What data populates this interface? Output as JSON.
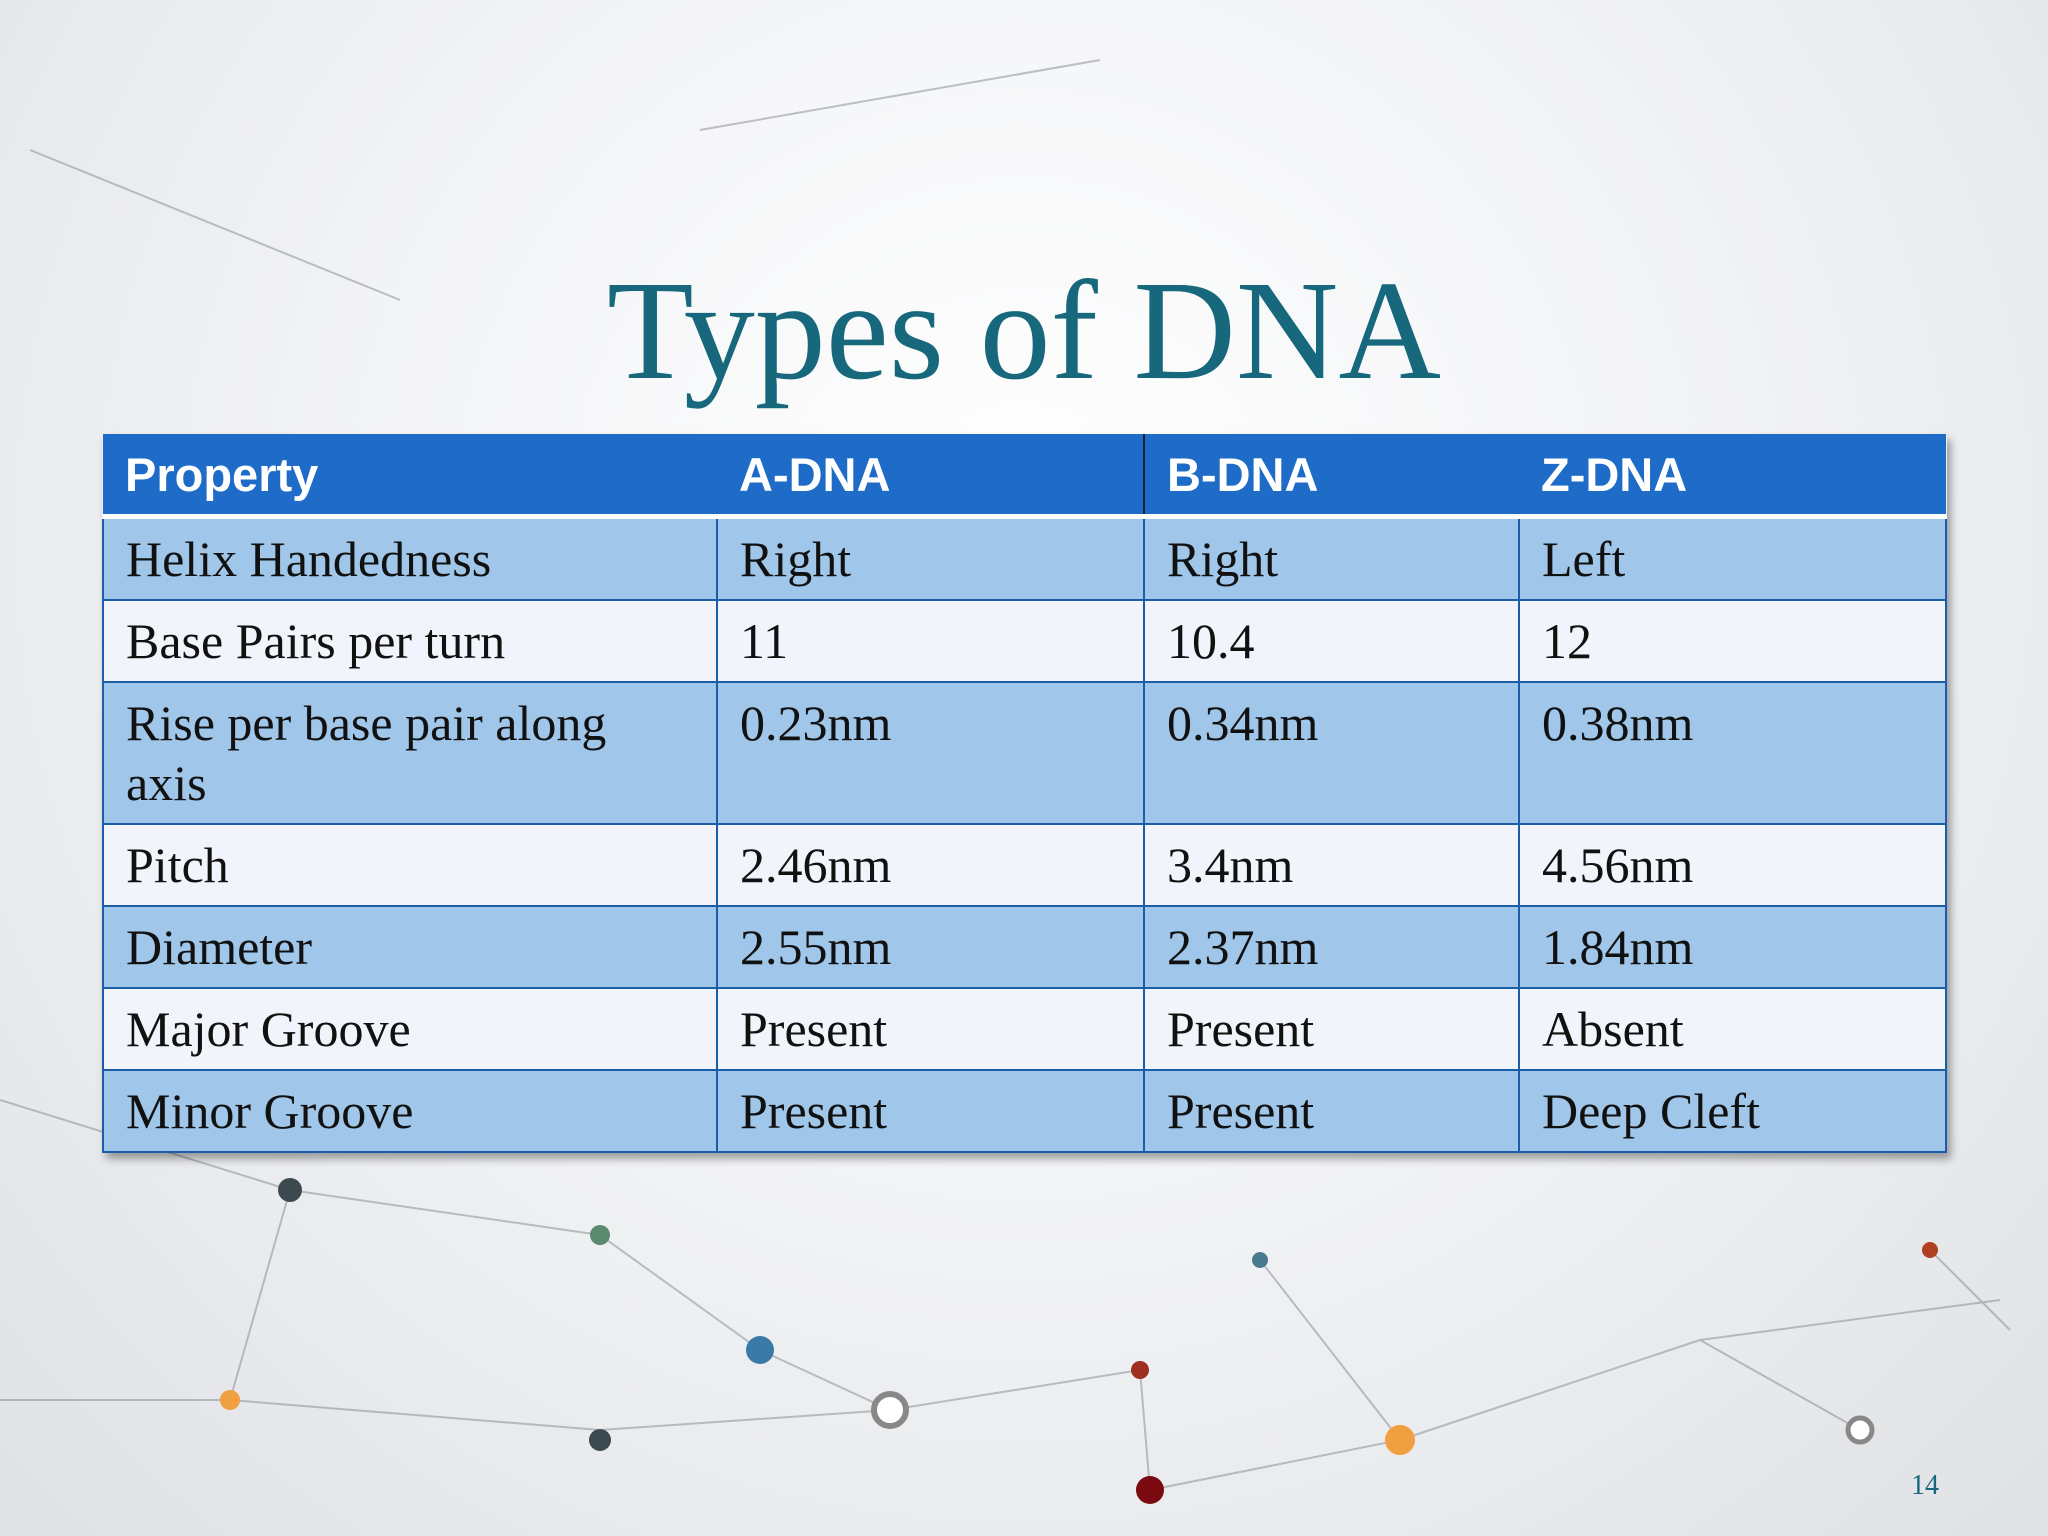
{
  "title": "Types of DNA",
  "table": {
    "header": [
      "Property",
      "A-DNA",
      "B-DNA",
      "Z-DNA"
    ],
    "rows": [
      [
        "Helix Handedness",
        "Right",
        "Right",
        "Left"
      ],
      [
        "Base Pairs per turn",
        "11",
        "10.4",
        "12"
      ],
      [
        "Rise per base pair along axis",
        "0.23nm",
        "0.34nm",
        "0.38nm"
      ],
      [
        "Pitch",
        "2.46nm",
        "3.4nm",
        "4.56nm"
      ],
      [
        "Diameter",
        "2.55nm",
        "2.37nm",
        "1.84nm"
      ],
      [
        "Major Groove",
        "Present",
        "Present",
        "Absent"
      ],
      [
        "Minor Groove",
        "Present",
        "Present",
        "Deep Cleft"
      ]
    ]
  },
  "page_number": "14"
}
